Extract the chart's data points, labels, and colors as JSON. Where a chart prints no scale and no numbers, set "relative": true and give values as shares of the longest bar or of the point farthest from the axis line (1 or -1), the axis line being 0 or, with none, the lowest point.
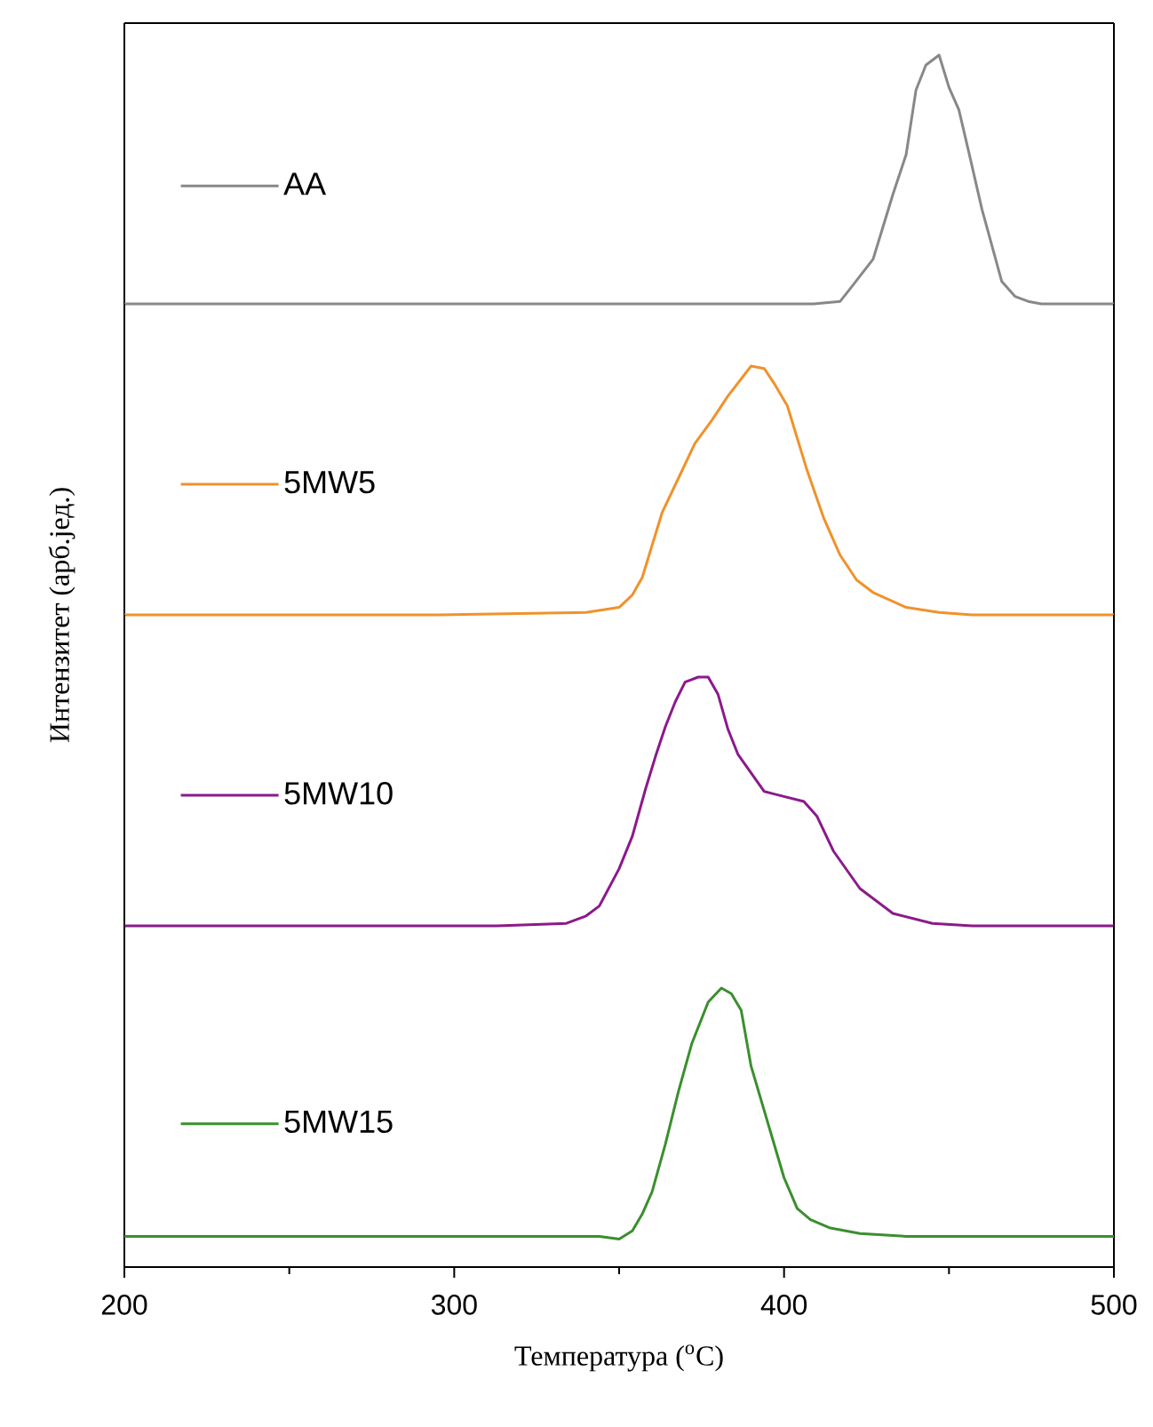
{
  "chart_data": [
    {
      "type": "line",
      "relative": true,
      "xlim": [
        200,
        500
      ],
      "tick_labels": false,
      "legend": "left",
      "x": [
        200,
        396,
        409,
        417,
        420,
        427,
        430,
        433,
        437,
        440,
        443,
        447,
        450,
        453,
        456,
        460,
        466,
        470,
        474,
        478,
        500
      ],
      "series": [
        {
          "name": "AA",
          "color": "#888888",
          "values": [
            0,
            0,
            0,
            0.01,
            0.06,
            0.18,
            0.31,
            0.44,
            0.6,
            0.86,
            0.96,
            1,
            0.87,
            0.78,
            0.61,
            0.38,
            0.09,
            0.03,
            0.01,
            0,
            0
          ]
        }
      ]
    },
    {
      "type": "line",
      "relative": true,
      "xlim": [
        200,
        500
      ],
      "tick_labels": false,
      "legend": "left",
      "ylabel": "Интензитет (арб.јед.)",
      "x": [
        200,
        295,
        340,
        350,
        354,
        357,
        363,
        368,
        373,
        378,
        383,
        390,
        394,
        397,
        401,
        407,
        412,
        417,
        422,
        427,
        437,
        447,
        457,
        500
      ],
      "series": [
        {
          "name": "5MW5",
          "color": "#f0922c",
          "values": [
            0,
            0,
            0.01,
            0.03,
            0.08,
            0.15,
            0.41,
            0.55,
            0.69,
            0.78,
            0.88,
            1,
            0.99,
            0.93,
            0.84,
            0.58,
            0.39,
            0.24,
            0.14,
            0.09,
            0.03,
            0.01,
            0,
            0
          ]
        }
      ]
    },
    {
      "type": "line",
      "relative": true,
      "xlim": [
        200,
        500
      ],
      "tick_labels": false,
      "legend": "left",
      "x": [
        200,
        313,
        334,
        340,
        344,
        350,
        354,
        358,
        361,
        364,
        367,
        370,
        374,
        377,
        380,
        383,
        386,
        394,
        397,
        406,
        410,
        415,
        423,
        433,
        445,
        457,
        500
      ],
      "series": [
        {
          "name": "5MW10",
          "color": "#8b1a8b",
          "values": [
            0,
            0,
            0.01,
            0.04,
            0.08,
            0.23,
            0.36,
            0.55,
            0.68,
            0.8,
            0.9,
            0.98,
            1,
            1,
            0.93,
            0.79,
            0.69,
            0.54,
            0.53,
            0.5,
            0.44,
            0.3,
            0.15,
            0.05,
            0.01,
            0,
            0
          ]
        }
      ]
    },
    {
      "type": "line",
      "relative": true,
      "xlim": [
        200,
        500
      ],
      "xticks": [
        200,
        300,
        400,
        500
      ],
      "tick_labels": "x",
      "legend": "left",
      "xlabel": "Температура ($^{o}$C)",
      "x": [
        200,
        344,
        350,
        354,
        357,
        360,
        364,
        368,
        372,
        377,
        381,
        384,
        387,
        390,
        396,
        400,
        404,
        408,
        414,
        423,
        437,
        500
      ],
      "series": [
        {
          "name": "5MW15",
          "color": "#3a8f2e",
          "values": [
            0.11,
            0.11,
            0.1,
            0.13,
            0.19,
            0.27,
            0.44,
            0.63,
            0.8,
            0.95,
            1,
            0.98,
            0.92,
            0.72,
            0.48,
            0.32,
            0.21,
            0.17,
            0.14,
            0.12,
            0.11,
            0.11
          ]
        }
      ]
    }
  ]
}
